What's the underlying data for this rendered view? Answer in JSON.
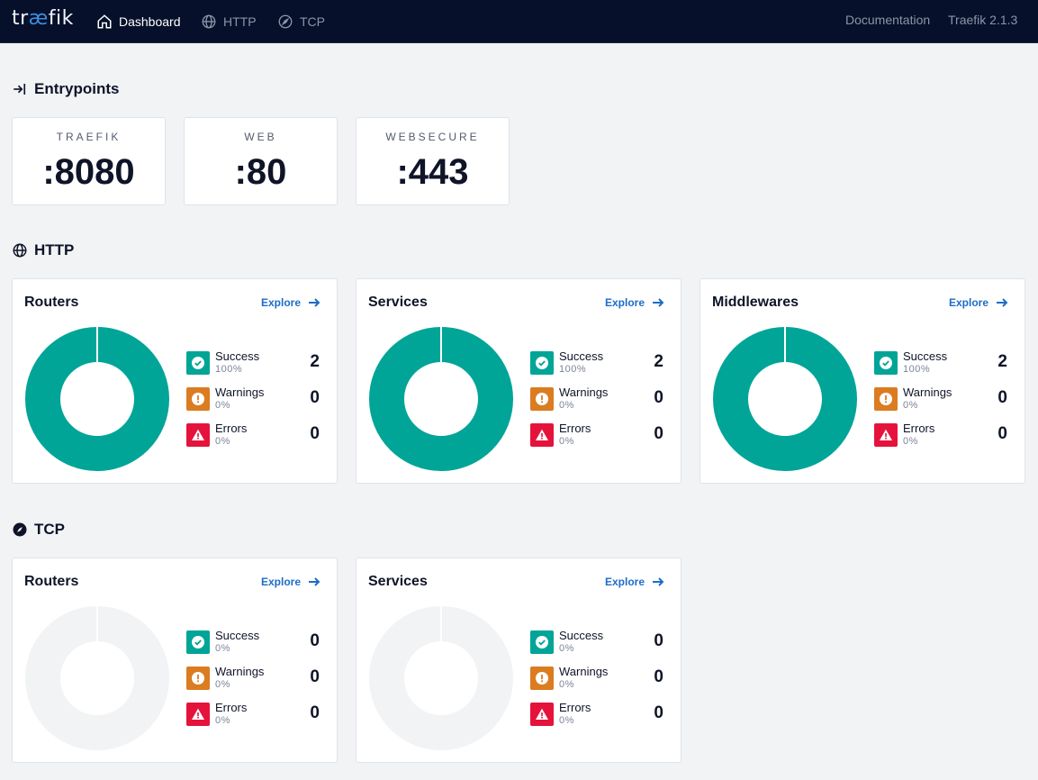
{
  "header": {
    "logo_pre": "tr",
    "logo_ae": "æ",
    "logo_post": "fik",
    "nav": [
      {
        "label": "Dashboard",
        "icon": "home-icon",
        "active": true
      },
      {
        "label": "HTTP",
        "icon": "globe-icon",
        "active": false
      },
      {
        "label": "TCP",
        "icon": "compass-icon",
        "active": false
      }
    ],
    "documentation": "Documentation",
    "version": "Traefik 2.1.3"
  },
  "entrypoints": {
    "title": "Entrypoints",
    "icon": "sign-in-icon",
    "items": [
      {
        "name": "TRAEFIK",
        "port": ":8080"
      },
      {
        "name": "WEB",
        "port": ":80"
      },
      {
        "name": "WEBSECURE",
        "port": ":443"
      }
    ]
  },
  "http": {
    "title": "HTTP",
    "icon": "globe-icon",
    "panels": [
      {
        "title": "Routers",
        "explore": "Explore",
        "success": {
          "label": "Success",
          "pct": "100%",
          "count": "2"
        },
        "warnings": {
          "label": "Warnings",
          "pct": "0%",
          "count": "0"
        },
        "errors": {
          "label": "Errors",
          "pct": "0%",
          "count": "0"
        },
        "success_fraction": 1.0
      },
      {
        "title": "Services",
        "explore": "Explore",
        "success": {
          "label": "Success",
          "pct": "100%",
          "count": "2"
        },
        "warnings": {
          "label": "Warnings",
          "pct": "0%",
          "count": "0"
        },
        "errors": {
          "label": "Errors",
          "pct": "0%",
          "count": "0"
        },
        "success_fraction": 1.0
      },
      {
        "title": "Middlewares",
        "explore": "Explore",
        "success": {
          "label": "Success",
          "pct": "100%",
          "count": "2"
        },
        "warnings": {
          "label": "Warnings",
          "pct": "0%",
          "count": "0"
        },
        "errors": {
          "label": "Errors",
          "pct": "0%",
          "count": "0"
        },
        "success_fraction": 1.0
      }
    ]
  },
  "tcp": {
    "title": "TCP",
    "icon": "compass-icon",
    "panels": [
      {
        "title": "Routers",
        "explore": "Explore",
        "success": {
          "label": "Success",
          "pct": "0%",
          "count": "0"
        },
        "warnings": {
          "label": "Warnings",
          "pct": "0%",
          "count": "0"
        },
        "errors": {
          "label": "Errors",
          "pct": "0%",
          "count": "0"
        },
        "success_fraction": 0
      },
      {
        "title": "Services",
        "explore": "Explore",
        "success": {
          "label": "Success",
          "pct": "0%",
          "count": "0"
        },
        "warnings": {
          "label": "Warnings",
          "pct": "0%",
          "count": "0"
        },
        "errors": {
          "label": "Errors",
          "pct": "0%",
          "count": "0"
        },
        "success_fraction": 0
      }
    ]
  },
  "colors": {
    "success": "#00a597",
    "warning": "#db7c21",
    "error": "#e5133c",
    "empty_ring": "#f1f3f5",
    "topbar": "#06102a"
  }
}
